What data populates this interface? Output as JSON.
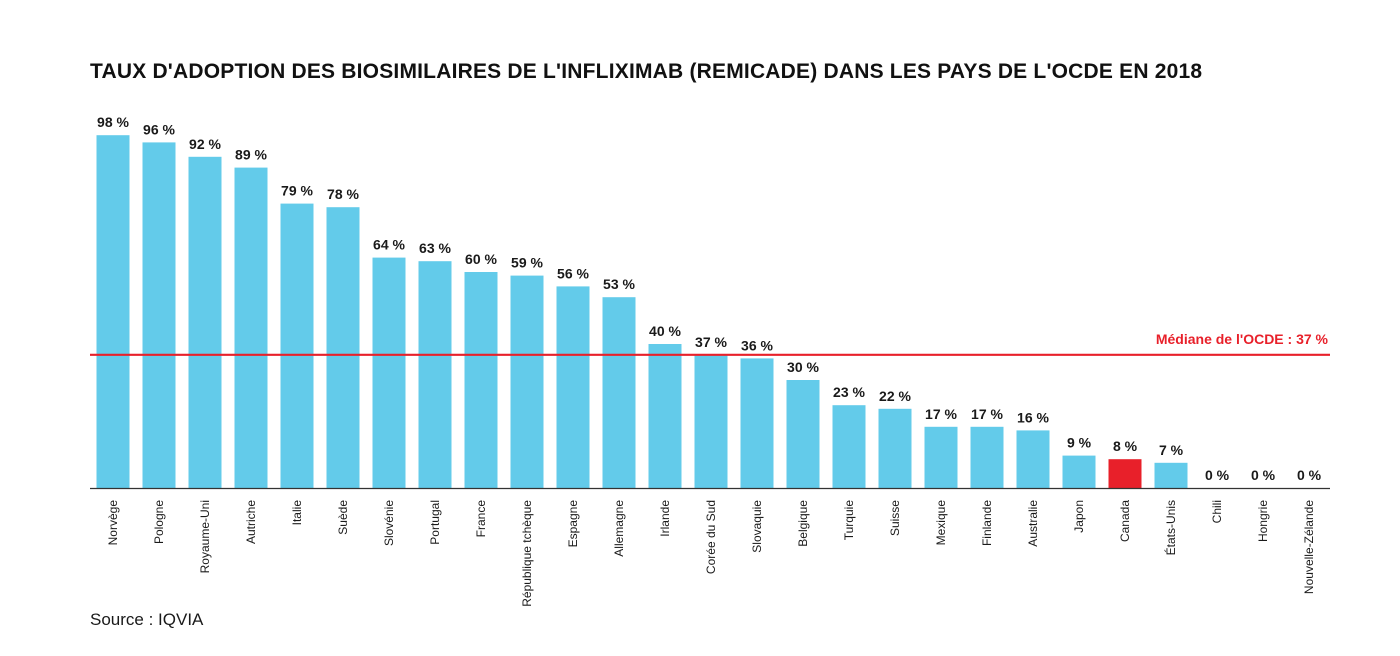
{
  "source": "Source : IQVIA",
  "colors": {
    "bar": "#63cbea",
    "highlight": "#e8202a",
    "median": "#e8202a",
    "axis": "#333333"
  },
  "chart_data": {
    "type": "bar",
    "title": "TAUX D'ADOPTION DES BIOSIMILAIRES DE L'INFLIXIMAB (REMICADE) DANS LES PAYS DE L'OCDE EN 2018",
    "xlabel": "",
    "ylabel": "",
    "ylim": [
      0,
      100
    ],
    "grid": false,
    "categories": [
      "Norvège",
      "Pologne",
      "Royaume-Uni",
      "Autriche",
      "Italie",
      "Suède",
      "Slovénie",
      "Portugal",
      "France",
      "République tchèque",
      "Espagne",
      "Allemagne",
      "Irlande",
      "Corée du Sud",
      "Slovaquie",
      "Belgique",
      "Turquie",
      "Suisse",
      "Mexique",
      "Finlande",
      "Australie",
      "Japon",
      "Canada",
      "États-Unis",
      "Chili",
      "Hongrie",
      "Nouvelle-Zélande"
    ],
    "values": [
      98,
      96,
      92,
      89,
      79,
      78,
      64,
      63,
      60,
      59,
      56,
      53,
      40,
      37,
      36,
      30,
      23,
      22,
      17,
      17,
      16,
      9,
      8,
      7,
      0,
      0,
      0
    ],
    "value_labels": [
      "98 %",
      "96 %",
      "92 %",
      "89 %",
      "79 %",
      "78 %",
      "64 %",
      "63 %",
      "60 %",
      "59 %",
      "56 %",
      "53 %",
      "40 %",
      "37 %",
      "36 %",
      "30 %",
      "23 %",
      "22 %",
      "17 %",
      "17 %",
      "16 %",
      "9 %",
      "8 %",
      "7 %",
      "0 %",
      "0 %",
      "0 %"
    ],
    "highlight_category": "Canada",
    "median": {
      "value": 37,
      "label": "Médiane de l'OCDE : 37 %"
    }
  }
}
